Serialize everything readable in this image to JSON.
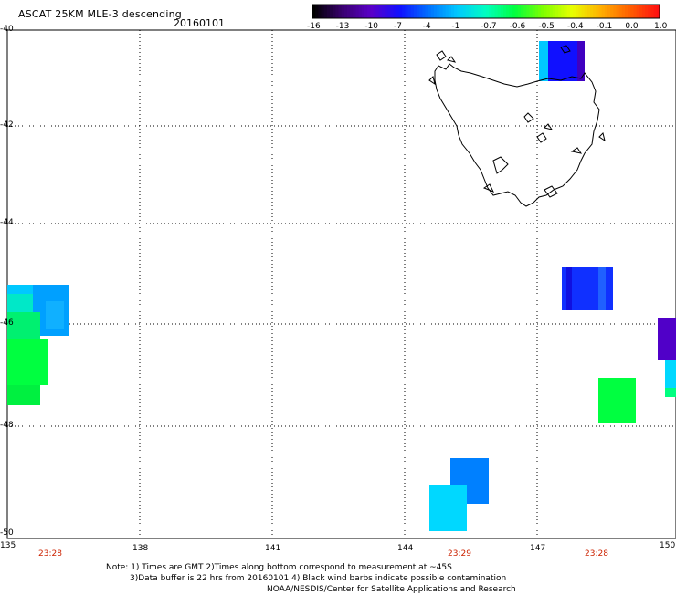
{
  "header": {
    "title": "ASCAT 25KM MLE-3 descending",
    "date": "20160101"
  },
  "colorbar": {
    "labels": [
      "-16",
      "-13",
      "-10",
      "-7",
      "-4",
      "-1",
      "-0.7",
      "-0.6",
      "-0.5",
      "-0.4",
      "-0.1",
      "0.0",
      "1.0"
    ],
    "colors": [
      "#000000",
      "#3a0070",
      "#5a00c8",
      "#1010ff",
      "#0070ff",
      "#00c8ff",
      "#00ffc0",
      "#00ff40",
      "#80ff00",
      "#e8ff00",
      "#ffb000",
      "#ff6000",
      "#ff1010"
    ]
  },
  "axes": {
    "y_labels": [
      "-40",
      "-42",
      "-44",
      "-46",
      "-48",
      "-50"
    ],
    "x_labels": [
      "135",
      "138",
      "141",
      "144",
      "147",
      "150"
    ]
  },
  "times": [
    "23:28",
    "23:29",
    "23:28"
  ],
  "notes": {
    "line1": "Note: 1) Times are GMT 2)Times along bottom correspond to measurement at ~45S",
    "line2": "3)Data buffer is 22 hrs from 20160101 4) Black wind barbs indicate possible contamination",
    "line3": "NOAA/NESDIS/Center for Satellite Applications and Research"
  },
  "map": {
    "region": "Tasmania",
    "swath_colors": {
      "cyan": "#00c8ff",
      "light_blue": "#00a0ff",
      "blue": "#1010ff",
      "mid_blue": "#0070ff",
      "green": "#00ff40",
      "aqua": "#00ffc0",
      "purple": "#5000c8"
    }
  }
}
